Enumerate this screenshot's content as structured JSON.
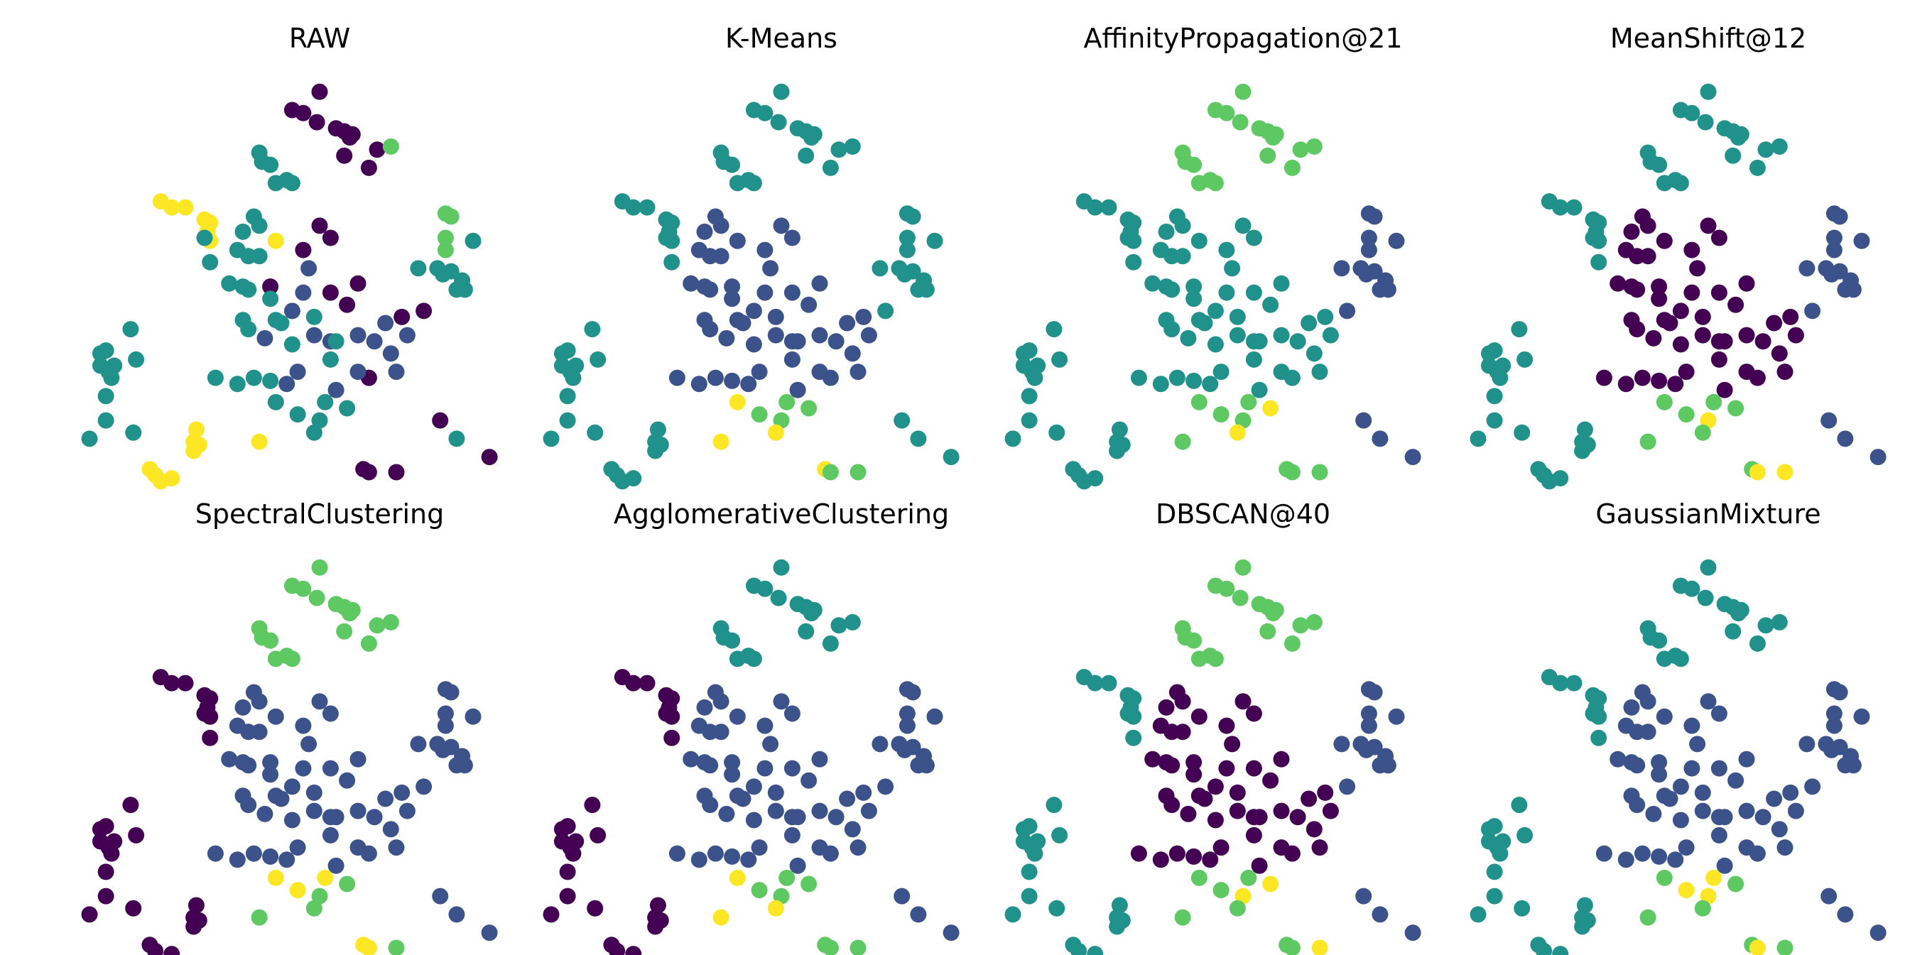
{
  "palette": [
    "#440154",
    "#3b528b",
    "#21918c",
    "#5ec962",
    "#fde725"
  ],
  "chart_data": [
    {
      "type": "scatter",
      "title": "RAW",
      "points": [
        [
          2.2,
          -3.0,
          4
        ],
        [
          2.3,
          -3.1,
          4
        ],
        [
          2.4,
          -3.2,
          4
        ],
        [
          2.6,
          -3.15,
          4
        ],
        [
          3.0,
          -2.7,
          4
        ],
        [
          3.0,
          -2.55,
          4
        ],
        [
          3.1,
          -2.6,
          4
        ],
        [
          3.05,
          -2.35,
          4
        ],
        [
          4.2,
          -2.55,
          4
        ],
        [
          1.1,
          -2.5,
          2
        ],
        [
          1.4,
          -2.2,
          2
        ],
        [
          1.9,
          -2.4,
          2
        ],
        [
          1.4,
          -1.8,
          2
        ],
        [
          1.5,
          -1.5,
          2
        ],
        [
          1.45,
          -1.4,
          2
        ],
        [
          1.3,
          -1.1,
          2
        ],
        [
          1.4,
          -1.05,
          2
        ],
        [
          1.3,
          -1.3,
          2
        ],
        [
          1.55,
          -1.3,
          2
        ],
        [
          1.95,
          -1.2,
          2
        ],
        [
          1.85,
          -0.7,
          2
        ],
        [
          4.0,
          -0.7,
          2
        ],
        [
          5.0,
          0.6,
          0
        ],
        [
          5.3,
          1.0,
          0
        ],
        [
          5.5,
          0.8,
          0
        ],
        [
          4.4,
          0.0,
          0
        ],
        [
          5.5,
          -0.1,
          0
        ],
        [
          5.8,
          -0.3,
          0
        ],
        [
          6.0,
          0.05,
          0
        ],
        [
          6.8,
          -0.5,
          0
        ],
        [
          7.2,
          -0.4,
          0
        ],
        [
          6.2,
          -1.5,
          0
        ],
        [
          7.5,
          -2.2,
          0
        ],
        [
          6.1,
          -3.0,
          0
        ],
        [
          6.2,
          -3.05,
          0
        ],
        [
          6.7,
          -3.05,
          0
        ],
        [
          8.4,
          -2.8,
          0
        ],
        [
          4.9,
          -1.4,
          1
        ],
        [
          5.0,
          -0.1,
          1
        ],
        [
          4.3,
          -0.85,
          1
        ],
        [
          5.2,
          -0.8,
          1
        ],
        [
          5.5,
          -0.9,
          1
        ],
        [
          6.0,
          -0.8,
          1
        ],
        [
          6.6,
          -1.1,
          1
        ],
        [
          6.7,
          -1.4,
          1
        ],
        [
          6.0,
          -1.4,
          1
        ],
        [
          5.6,
          -1.7,
          1
        ],
        [
          4.7,
          -1.6,
          1
        ],
        [
          6.9,
          -0.8,
          1
        ],
        [
          6.5,
          -0.6,
          1
        ],
        [
          6.3,
          -0.9,
          1
        ],
        [
          4.8,
          1.7,
          2
        ],
        [
          4.4,
          -0.2,
          2
        ],
        [
          4.5,
          -0.55,
          2
        ],
        [
          5.2,
          -0.5,
          2
        ],
        [
          4.6,
          -0.6,
          2
        ],
        [
          5.5,
          -1.2,
          2
        ],
        [
          5.6,
          -0.9,
          2
        ],
        [
          4.8,
          -0.95,
          2
        ],
        [
          5.3,
          -2.2,
          2
        ],
        [
          5.8,
          -2.0,
          2
        ],
        [
          5.2,
          -2.4,
          2
        ],
        [
          7.8,
          -2.5,
          2
        ],
        [
          5.4,
          -1.9,
          2
        ],
        [
          4.8,
          -0.4,
          1
        ],
        [
          5.1,
          0.3,
          1
        ],
        [
          4.2,
          2.2,
          2
        ],
        [
          4.25,
          2.05,
          2
        ],
        [
          4.4,
          2.0,
          2
        ],
        [
          4.5,
          1.7,
          2
        ],
        [
          4.7,
          1.75,
          2
        ],
        [
          4.1,
          1.15,
          2
        ],
        [
          4.2,
          1.0,
          2
        ],
        [
          3.9,
          0.9,
          2
        ],
        [
          3.8,
          0.6,
          2
        ],
        [
          4.0,
          0.5,
          2
        ],
        [
          4.2,
          0.5,
          2
        ],
        [
          3.65,
          0.05,
          2
        ],
        [
          3.9,
          0.0,
          2
        ],
        [
          4.0,
          -0.05,
          2
        ],
        [
          3.3,
          0.4,
          2
        ],
        [
          3.9,
          -0.55,
          2
        ],
        [
          3.4,
          -1.5,
          2
        ],
        [
          3.8,
          -1.6,
          2
        ],
        [
          4.1,
          -1.5,
          2
        ],
        [
          4.4,
          -1.55,
          2
        ],
        [
          4.5,
          -1.9,
          2
        ],
        [
          4.9,
          -2.1,
          2
        ]
      ],
      "raw_top": [
        [
          5.3,
          3.2,
          0
        ],
        [
          5.0,
          2.85,
          0
        ],
        [
          5.25,
          2.7,
          0
        ],
        [
          4.8,
          2.9,
          0
        ],
        [
          5.6,
          2.6,
          0
        ],
        [
          5.75,
          2.55,
          0
        ],
        [
          5.85,
          2.45,
          0
        ],
        [
          5.9,
          2.5,
          0
        ],
        [
          5.75,
          2.15,
          0
        ],
        [
          6.35,
          2.25,
          0
        ],
        [
          6.2,
          1.95,
          0
        ],
        [
          6.6,
          2.3,
          3
        ],
        [
          2.4,
          1.4,
          4
        ],
        [
          2.6,
          1.3,
          4
        ],
        [
          2.85,
          1.3,
          4
        ],
        [
          3.2,
          1.1,
          4
        ],
        [
          3.3,
          1.05,
          4
        ],
        [
          3.25,
          0.9,
          4
        ],
        [
          3.3,
          0.75,
          4
        ],
        [
          3.2,
          0.8,
          2
        ],
        [
          4.5,
          0.75,
          4
        ],
        [
          7.6,
          1.2,
          3
        ],
        [
          7.7,
          1.15,
          3
        ],
        [
          7.6,
          0.8,
          3
        ],
        [
          7.6,
          0.6,
          3
        ],
        [
          7.45,
          0.3,
          2
        ],
        [
          7.55,
          0.2,
          2
        ],
        [
          7.7,
          0.25,
          2
        ],
        [
          7.9,
          0.1,
          2
        ],
        [
          7.95,
          -0.05,
          2
        ],
        [
          7.8,
          -0.05,
          2
        ],
        [
          8.1,
          0.75,
          2
        ],
        [
          7.1,
          0.3,
          2
        ]
      ]
    }
  ],
  "panels": [
    {
      "title": "RAW"
    },
    {
      "title": "K-Means"
    },
    {
      "title": "AffinityPropagation@21"
    },
    {
      "title": "MeanShift@12"
    },
    {
      "title": "SpectralClustering"
    },
    {
      "title": "AgglomerativeClustering"
    },
    {
      "title": "DBSCAN@40"
    },
    {
      "title": "GaussianMixture"
    }
  ]
}
